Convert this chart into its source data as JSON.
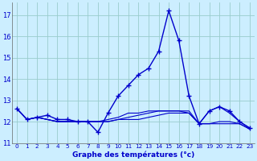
{
  "title": "Graphe des températures (°c)",
  "background_color": "#cceeff",
  "grid_color": "#99cccc",
  "line_color": "#0000cc",
  "xlim": [
    -0.5,
    23.5
  ],
  "ylim": [
    11.0,
    17.6
  ],
  "yticks": [
    11,
    12,
    13,
    14,
    15,
    16,
    17
  ],
  "xticks": [
    0,
    1,
    2,
    3,
    4,
    5,
    6,
    7,
    8,
    9,
    10,
    11,
    12,
    13,
    14,
    15,
    16,
    17,
    18,
    19,
    20,
    21,
    22,
    23
  ],
  "series": [
    {
      "x": [
        0,
        1,
        2,
        3,
        4,
        5,
        6,
        7,
        8,
        9,
        10,
        11,
        12,
        13,
        14,
        15,
        16,
        17,
        18,
        19,
        20,
        21,
        22,
        23
      ],
      "y": [
        12.6,
        12.1,
        12.2,
        12.3,
        12.1,
        12.1,
        12.0,
        12.0,
        11.5,
        12.4,
        13.2,
        13.7,
        14.2,
        14.5,
        15.3,
        17.2,
        15.8,
        13.2,
        11.9,
        12.5,
        12.7,
        12.5,
        12.0,
        11.7
      ],
      "marker": "+",
      "linewidth": 1.0,
      "markersize": 4
    },
    {
      "x": [
        0,
        1,
        2,
        3,
        4,
        5,
        6,
        7,
        8,
        9,
        10,
        11,
        12,
        13,
        14,
        15,
        16,
        17,
        18,
        19,
        20,
        21,
        22,
        23
      ],
      "y": [
        12.6,
        12.1,
        12.2,
        12.1,
        12.0,
        12.0,
        12.0,
        12.0,
        12.0,
        12.0,
        12.1,
        12.2,
        12.3,
        12.4,
        12.5,
        12.5,
        12.5,
        12.5,
        11.9,
        12.5,
        12.7,
        12.4,
        12.0,
        11.7
      ],
      "marker": null,
      "linewidth": 0.8,
      "markersize": 0
    },
    {
      "x": [
        0,
        1,
        2,
        3,
        4,
        5,
        6,
        7,
        8,
        9,
        10,
        11,
        12,
        13,
        14,
        15,
        16,
        17,
        18,
        19,
        20,
        21,
        22,
        23
      ],
      "y": [
        12.6,
        12.1,
        12.2,
        12.1,
        12.0,
        12.0,
        12.0,
        12.0,
        12.0,
        12.0,
        12.1,
        12.1,
        12.1,
        12.2,
        12.3,
        12.4,
        12.4,
        12.4,
        11.9,
        11.9,
        12.0,
        12.0,
        11.9,
        11.65
      ],
      "marker": null,
      "linewidth": 0.8,
      "markersize": 0
    },
    {
      "x": [
        0,
        1,
        2,
        3,
        4,
        5,
        6,
        7,
        8,
        9,
        10,
        11,
        12,
        13,
        14,
        15,
        16,
        17,
        18,
        19,
        20,
        21,
        22,
        23
      ],
      "y": [
        12.6,
        12.1,
        12.2,
        12.1,
        12.0,
        12.0,
        12.0,
        12.0,
        12.0,
        12.1,
        12.2,
        12.4,
        12.4,
        12.5,
        12.5,
        12.5,
        12.5,
        12.4,
        11.9,
        11.9,
        11.9,
        11.9,
        11.9,
        11.65
      ],
      "marker": null,
      "linewidth": 0.8,
      "markersize": 0
    }
  ]
}
